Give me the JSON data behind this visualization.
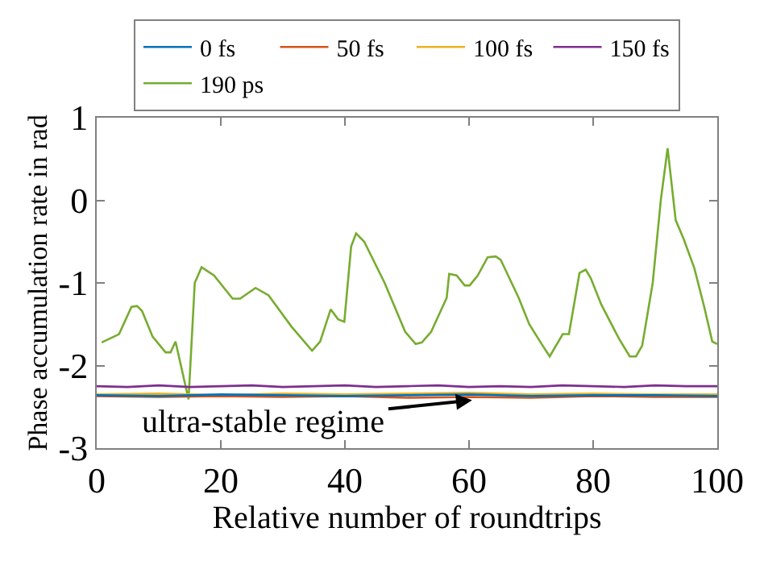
{
  "chart_data": {
    "type": "line",
    "xlabel": "Relative number of roundtrips",
    "ylabel": "Phase accumulation rate in rad",
    "xlim": [
      0,
      100
    ],
    "xticks": [
      0,
      20,
      40,
      60,
      80,
      100
    ],
    "ylim": [
      -3,
      1
    ],
    "yticks": [
      -3,
      -2,
      -1,
      0,
      1
    ],
    "legend": "top",
    "marker": "none",
    "line_style": "solid",
    "series": [
      {
        "name": "0 fs",
        "color": "#0072bd",
        "x": [
          0,
          10,
          20,
          30,
          40,
          50,
          60,
          70,
          80,
          90,
          100
        ],
        "values": [
          -2.36,
          -2.37,
          -2.35,
          -2.36,
          -2.37,
          -2.36,
          -2.35,
          -2.37,
          -2.36,
          -2.36,
          -2.37
        ]
      },
      {
        "name": "50 fs",
        "color": "#d95319",
        "x": [
          0,
          10,
          20,
          30,
          40,
          50,
          60,
          70,
          80,
          90,
          100
        ],
        "values": [
          -2.37,
          -2.38,
          -2.37,
          -2.38,
          -2.37,
          -2.39,
          -2.38,
          -2.39,
          -2.37,
          -2.38,
          -2.38
        ]
      },
      {
        "name": "100 fs",
        "color": "#edb120",
        "x": [
          0,
          10,
          20,
          30,
          40,
          50,
          60,
          70,
          80,
          90,
          100
        ],
        "values": [
          -2.35,
          -2.34,
          -2.36,
          -2.34,
          -2.35,
          -2.34,
          -2.33,
          -2.35,
          -2.34,
          -2.35,
          -2.35
        ]
      },
      {
        "name": "150 fs",
        "color": "#7e2f8e",
        "x": [
          0,
          5,
          10,
          15,
          20,
          25,
          30,
          35,
          40,
          45,
          50,
          55,
          60,
          65,
          70,
          75,
          80,
          85,
          90,
          95,
          100
        ],
        "values": [
          -2.25,
          -2.26,
          -2.24,
          -2.26,
          -2.25,
          -2.24,
          -2.26,
          -2.25,
          -2.24,
          -2.26,
          -2.25,
          -2.24,
          -2.26,
          -2.25,
          -2.26,
          -2.24,
          -2.25,
          -2.26,
          -2.24,
          -2.25,
          -2.25
        ]
      },
      {
        "name": "190 ps",
        "color": "#77ac30",
        "x": [
          0.8,
          3.6,
          5.6,
          6.5,
          7.3,
          9.0,
          11.1,
          11.9,
          12.7,
          14.8,
          15.8,
          16.9,
          18.9,
          21.9,
          23.1,
          25.6,
          27.7,
          31.4,
          34.7,
          36.0,
          37.7,
          38.9,
          39.9,
          41.0,
          41.8,
          43.1,
          46.4,
          49.7,
          51.4,
          52.4,
          53.9,
          56.4,
          56.8,
          58.0,
          59.3,
          60.1,
          61.4,
          63.0,
          64.3,
          65.1,
          68.0,
          69.7,
          71.7,
          73.0,
          75.1,
          76.1,
          77.8,
          78.8,
          79.6,
          81.3,
          84.2,
          85.9,
          86.9,
          87.9,
          89.6,
          90.9,
          92.0,
          93.3,
          94.6,
          96.3,
          97.9,
          99.2,
          100
        ],
        "values": [
          -1.72,
          -1.62,
          -1.29,
          -1.28,
          -1.34,
          -1.65,
          -1.84,
          -1.84,
          -1.71,
          -2.41,
          -1.0,
          -0.81,
          -0.91,
          -1.19,
          -1.19,
          -1.06,
          -1.15,
          -1.53,
          -1.82,
          -1.71,
          -1.32,
          -1.44,
          -1.47,
          -0.56,
          -0.4,
          -0.5,
          -1.0,
          -1.59,
          -1.74,
          -1.72,
          -1.59,
          -1.18,
          -0.89,
          -0.91,
          -1.03,
          -1.03,
          -0.91,
          -0.69,
          -0.68,
          -0.72,
          -1.18,
          -1.5,
          -1.74,
          -1.89,
          -1.62,
          -1.62,
          -0.88,
          -0.84,
          -0.94,
          -1.26,
          -1.68,
          -1.89,
          -1.89,
          -1.76,
          -1.0,
          0.0,
          0.63,
          -0.24,
          -0.47,
          -0.82,
          -1.29,
          -1.71,
          -1.74
        ]
      }
    ],
    "annotations": [
      {
        "text": "ultra-stable regime",
        "x": 60.5,
        "y": -2.42
      }
    ]
  }
}
